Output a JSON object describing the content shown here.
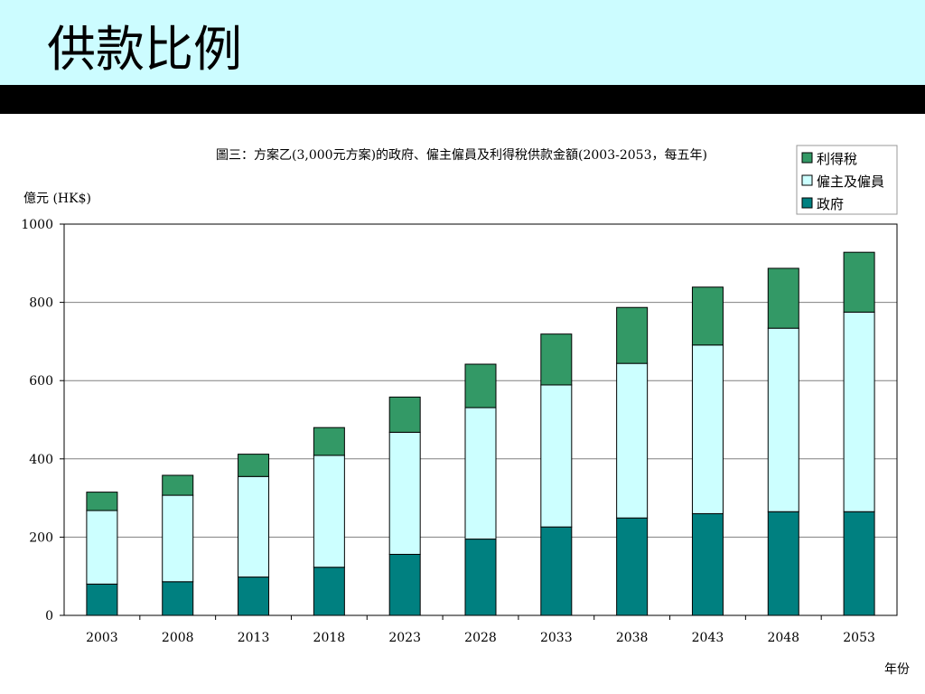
{
  "slide": {
    "title": "供款比例"
  },
  "colors": {
    "header_band": "#ccfcff",
    "bar_strip": "#000000",
    "government": "#008080",
    "employer_employee": "#ccffff",
    "profits_tax": "#339966"
  },
  "chart_data": {
    "type": "bar",
    "stacked": true,
    "title": "圖三：方案乙(3,000元方案)的政府、僱主僱員及利得稅供款金額(2003-2053，每五年)",
    "ylabel": "億元 (HK$)",
    "xlabel": "年份",
    "ylim": [
      0,
      1000
    ],
    "yticks": [
      "0",
      "200",
      "400",
      "600",
      "800",
      "1000"
    ],
    "grid": true,
    "legend_position": "top-right",
    "categories": [
      "2003",
      "2008",
      "2013",
      "2018",
      "2023",
      "2028",
      "2033",
      "2038",
      "2043",
      "2048",
      "2053"
    ],
    "series": [
      {
        "name": "政府",
        "color": "#008080",
        "values": [
          80,
          86,
          98,
          123,
          156,
          195,
          226,
          249,
          260,
          265,
          265
        ]
      },
      {
        "name": "僱主及僱員",
        "color": "#ccffff",
        "values": [
          188,
          221,
          257,
          286,
          312,
          336,
          363,
          395,
          431,
          469,
          510
        ]
      },
      {
        "name": "利得稅",
        "color": "#339966",
        "values": [
          47,
          51,
          57,
          71,
          90,
          111,
          130,
          143,
          148,
          153,
          153
        ]
      }
    ],
    "legend_order": [
      "利得稅",
      "僱主及僱員",
      "政府"
    ]
  }
}
